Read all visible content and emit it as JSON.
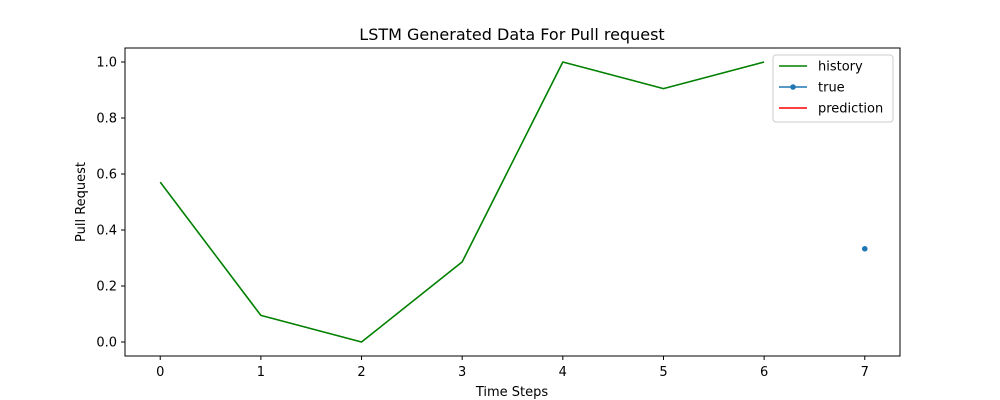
{
  "chart_data": {
    "type": "line",
    "title": "LSTM Generated Data For Pull request",
    "xlabel": "Time Steps",
    "ylabel": "Pull Request",
    "xlim": [
      -0.35,
      7.35
    ],
    "ylim": [
      -0.05,
      1.05
    ],
    "xticks": [
      0,
      1,
      2,
      3,
      4,
      5,
      6,
      7
    ],
    "xtick_labels": [
      "0",
      "1",
      "2",
      "3",
      "4",
      "5",
      "6",
      "7"
    ],
    "yticks": [
      0.0,
      0.2,
      0.4,
      0.6,
      0.8,
      1.0
    ],
    "ytick_labels": [
      "0.0",
      "0.2",
      "0.4",
      "0.6",
      "0.8",
      "1.0"
    ],
    "grid": false,
    "legend_position": "top-right",
    "series": [
      {
        "name": "history",
        "color": "#008000",
        "marker": "none",
        "x": [
          0,
          1,
          2,
          3,
          4,
          5,
          6
        ],
        "y": [
          0.571,
          0.095,
          0.0,
          0.286,
          1.0,
          0.905,
          1.0
        ]
      },
      {
        "name": "true",
        "color": "#1f77b4",
        "marker": "dot",
        "x": [
          7
        ],
        "y": [
          0.333
        ]
      },
      {
        "name": "prediction",
        "color": "#ff0000",
        "marker": "none",
        "x": [],
        "y": []
      }
    ]
  }
}
